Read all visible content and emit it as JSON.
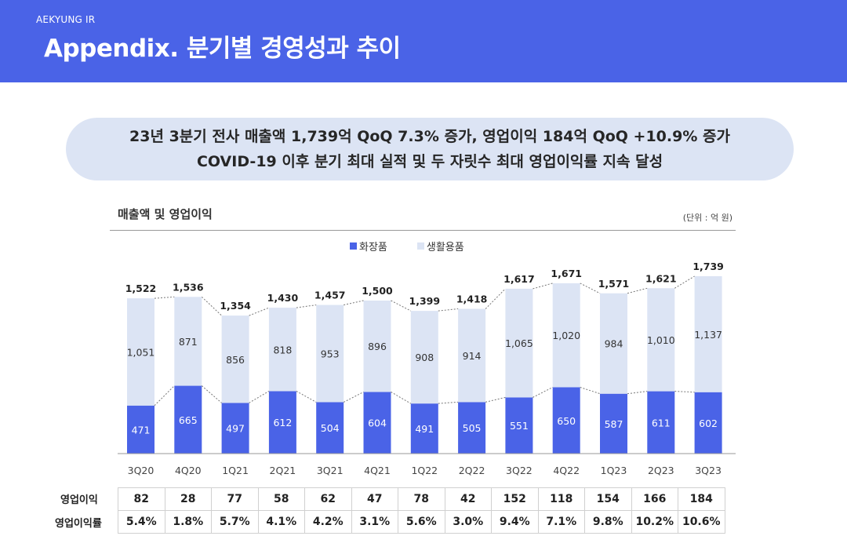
{
  "header": {
    "brand": "AEKYUNG IR",
    "title": "Appendix.  분기별 경영성과 추이"
  },
  "banner": {
    "line1": "23년 3분기 전사 매출액 1,739억 QoQ 7.3% 증가, 영업이익 184억 QoQ +10.9% 증가",
    "line2": "COVID-19 이후 분기 최대 실적 및 두 자릿수 최대 영업이익률 지속 달성"
  },
  "chart_title": "매출액 및 영업이익",
  "unit": "(단위 : 억 원)",
  "colors": {
    "header": "#4a63e7",
    "cosmetics": "#4a63e7",
    "household": "#dce4f4",
    "banner": "#dce4f4"
  },
  "chart_data": {
    "type": "bar",
    "stacked": true,
    "categories": [
      "3Q20",
      "4Q20",
      "1Q21",
      "2Q21",
      "3Q21",
      "4Q21",
      "1Q22",
      "2Q22",
      "3Q22",
      "4Q22",
      "1Q23",
      "2Q23",
      "3Q23"
    ],
    "series": [
      {
        "name": "화장품",
        "values": [
          471,
          665,
          497,
          612,
          504,
          604,
          491,
          505,
          551,
          650,
          587,
          611,
          602
        ]
      },
      {
        "name": "생활용품",
        "values": [
          1051,
          871,
          856,
          818,
          953,
          896,
          908,
          914,
          1065,
          1020,
          984,
          1010,
          1137
        ]
      }
    ],
    "series_labels": {
      "cosmetics": [
        "471",
        "665",
        "497",
        "612",
        "504",
        "604",
        "491",
        "505",
        "551",
        "650",
        "587",
        "611",
        "602"
      ],
      "household": [
        "1,051",
        "871",
        "856",
        "818",
        "953",
        "896",
        "908",
        "914",
        "1,065",
        "1,020",
        "984",
        "1,010",
        "1,137"
      ]
    },
    "totals": [
      1522,
      1536,
      1354,
      1430,
      1457,
      1500,
      1399,
      1418,
      1617,
      1671,
      1571,
      1621,
      1739
    ],
    "total_labels": [
      "1,522",
      "1,536",
      "1,354",
      "1,430",
      "1,457",
      "1,500",
      "1,399",
      "1,418",
      "1,617",
      "1,671",
      "1,571",
      "1,621",
      "1,739"
    ],
    "legend": [
      "화장품",
      "생활용품"
    ],
    "ylim": [
      0,
      1800
    ],
    "title": "매출액 및 영업이익",
    "xlabel": "",
    "ylabel": ""
  },
  "table": {
    "rows": [
      {
        "label": "영업이익",
        "values": [
          "82",
          "28",
          "77",
          "58",
          "62",
          "47",
          "78",
          "42",
          "152",
          "118",
          "154",
          "166",
          "184"
        ]
      },
      {
        "label": "영업이익률",
        "values": [
          "5.4%",
          "1.8%",
          "5.7%",
          "4.1%",
          "4.2%",
          "3.1%",
          "5.6%",
          "3.0%",
          "9.4%",
          "7.1%",
          "9.8%",
          "10.2%",
          "10.6%"
        ]
      }
    ]
  }
}
